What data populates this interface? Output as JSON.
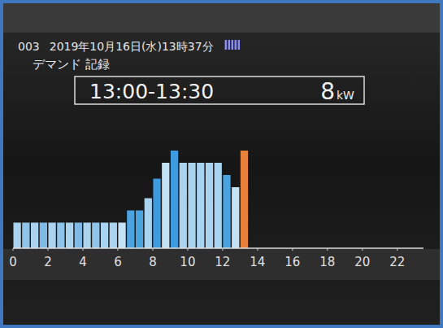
{
  "chart_data": {
    "type": "bar",
    "header": {
      "id": "003",
      "datetime": "2019年10月16日(水)13時37分"
    },
    "title": "デマンド 記録",
    "current": {
      "period": "13:00-13:30",
      "value": 8,
      "unit": "kW"
    },
    "x": [
      0,
      0.5,
      1,
      1.5,
      2,
      2.5,
      3,
      3.5,
      4,
      4.5,
      5,
      5.5,
      6,
      6.5,
      7,
      7.5,
      8,
      8.5,
      9,
      9.5,
      10,
      10.5,
      11,
      11.5,
      12,
      12.5,
      13
    ],
    "values": [
      2.1,
      2.1,
      2.1,
      2.1,
      2.1,
      2.1,
      2.1,
      2.1,
      2.1,
      2.1,
      2.1,
      2.1,
      2.1,
      3.1,
      3.1,
      4.1,
      5.7,
      7.0,
      8.0,
      7.0,
      7.0,
      7.0,
      7.0,
      7.0,
      6.0,
      5.0,
      8.0
    ],
    "colors": [
      "#a9d3ef",
      "#8ec3ea",
      "#a9d3ef",
      "#7fb9e6",
      "#a9d3ef",
      "#8ec3ea",
      "#a9d3ef",
      "#7fb9e6",
      "#a9d3ef",
      "#8ec3ea",
      "#a9d3ef",
      "#a9d3ef",
      "#c4e2f6",
      "#4aa3df",
      "#4aa3df",
      "#a9d3ef",
      "#3f9be0",
      "#c4e2f6",
      "#3f9be0",
      "#a9d3ef",
      "#a9d3ef",
      "#a9d3ef",
      "#a9d3ef",
      "#a9d3ef",
      "#4aa3df",
      "#c4e2f6",
      "#e8813a"
    ],
    "xlim": [
      0,
      23.5
    ],
    "xticks": [
      0,
      2,
      4,
      6,
      8,
      10,
      12,
      14,
      16,
      18,
      20,
      22
    ],
    "ylim": [
      0,
      10
    ],
    "tick_labels": "x",
    "grid": false
  }
}
